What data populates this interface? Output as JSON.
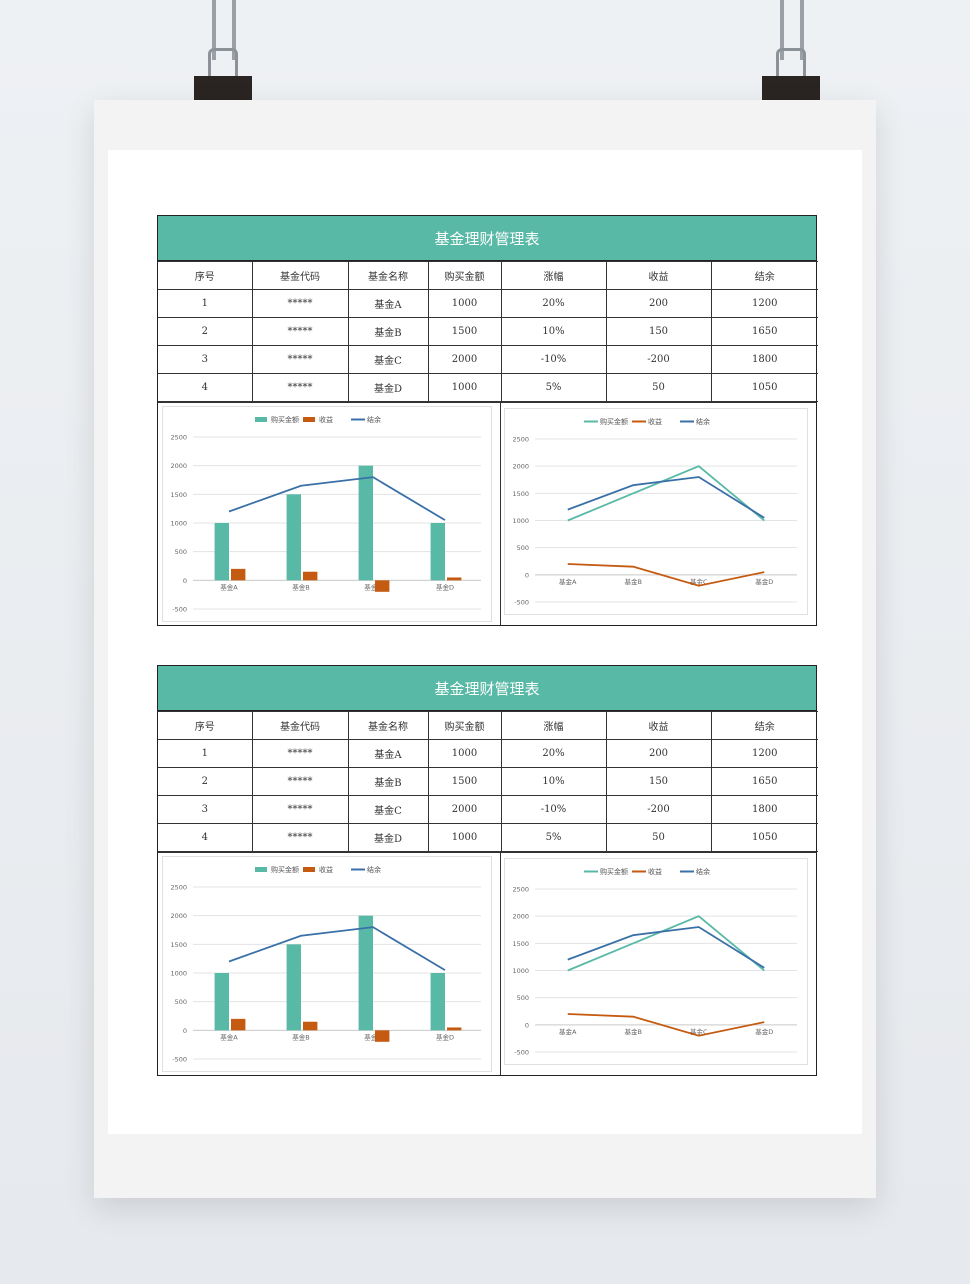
{
  "sheets": [
    {
      "title": "基金理财管理表",
      "headers": [
        "序号",
        "基金代码",
        "基金名称",
        "购买金额",
        "涨幅",
        "收益",
        "结余"
      ],
      "rows": [
        [
          "1",
          "*****",
          "基金A",
          "1000",
          "20%",
          "200",
          "1200"
        ],
        [
          "2",
          "*****",
          "基金B",
          "1500",
          "10%",
          "150",
          "1650"
        ],
        [
          "3",
          "*****",
          "基金C",
          "2000",
          "-10%",
          "-200",
          "1800"
        ],
        [
          "4",
          "*****",
          "基金D",
          "1000",
          "5%",
          "50",
          "1050"
        ]
      ]
    },
    {
      "title": "基金理财管理表",
      "headers": [
        "序号",
        "基金代码",
        "基金名称",
        "购买金额",
        "涨幅",
        "收益",
        "结余"
      ],
      "rows": [
        [
          "1",
          "*****",
          "基金A",
          "1000",
          "20%",
          "200",
          "1200"
        ],
        [
          "2",
          "*****",
          "基金B",
          "1500",
          "10%",
          "150",
          "1650"
        ],
        [
          "3",
          "*****",
          "基金C",
          "2000",
          "-10%",
          "-200",
          "1800"
        ],
        [
          "4",
          "*****",
          "基金D",
          "1000",
          "5%",
          "50",
          "1050"
        ]
      ]
    }
  ],
  "colors": {
    "header_bg": "#58b9a6",
    "purchase": "#58b9a6",
    "profit": "#c55a11",
    "balance": "#3a70a8"
  },
  "chart_data": [
    {
      "type": "bar",
      "categories": [
        "基金A",
        "基金B",
        "基金C",
        "基金D"
      ],
      "series": [
        {
          "name": "购买金额",
          "type": "bar",
          "values": [
            1000,
            1500,
            2000,
            1000
          ],
          "color": "#58b9a6"
        },
        {
          "name": "收益",
          "type": "bar",
          "values": [
            200,
            150,
            -200,
            50
          ],
          "color": "#c55a11"
        },
        {
          "name": "结余",
          "type": "line",
          "values": [
            1200,
            1650,
            1800,
            1050
          ],
          "color": "#3a70a8"
        }
      ],
      "ylim": [
        -500,
        2500
      ],
      "yticks": [
        2500,
        2000,
        1500,
        1000,
        500,
        0,
        -500
      ],
      "legend": "top-center",
      "grid": true
    },
    {
      "type": "line",
      "categories": [
        "基金A",
        "基金B",
        "基金C",
        "基金D"
      ],
      "series": [
        {
          "name": "购买金额",
          "values": [
            1000,
            1500,
            2000,
            1000
          ],
          "color": "#58b9a6"
        },
        {
          "name": "收益",
          "values": [
            200,
            150,
            -200,
            50
          ],
          "color": "#c55a11"
        },
        {
          "name": "结余",
          "values": [
            1200,
            1650,
            1800,
            1050
          ],
          "color": "#3a70a8"
        }
      ],
      "ylim": [
        -500,
        2500
      ],
      "yticks": [
        2500,
        2000,
        1500,
        1000,
        500,
        0,
        -500
      ],
      "legend": "top-center",
      "grid": true
    },
    {
      "type": "bar",
      "categories": [
        "基金A",
        "基金B",
        "基金C",
        "基金D"
      ],
      "series": [
        {
          "name": "购买金额",
          "type": "bar",
          "values": [
            1000,
            1500,
            2000,
            1000
          ],
          "color": "#58b9a6"
        },
        {
          "name": "收益",
          "type": "bar",
          "values": [
            200,
            150,
            -200,
            50
          ],
          "color": "#c55a11"
        },
        {
          "name": "结余",
          "type": "line",
          "values": [
            1200,
            1650,
            1800,
            1050
          ],
          "color": "#3a70a8"
        }
      ],
      "ylim": [
        -500,
        2500
      ],
      "yticks": [
        2500,
        2000,
        1500,
        1000,
        500,
        0,
        -500
      ],
      "legend": "top-center",
      "grid": true
    },
    {
      "type": "line",
      "categories": [
        "基金A",
        "基金B",
        "基金C",
        "基金D"
      ],
      "series": [
        {
          "name": "购买金额",
          "values": [
            1000,
            1500,
            2000,
            1000
          ],
          "color": "#58b9a6"
        },
        {
          "name": "收益",
          "values": [
            200,
            150,
            -200,
            50
          ],
          "color": "#c55a11"
        },
        {
          "name": "结余",
          "values": [
            1200,
            1650,
            1800,
            1050
          ],
          "color": "#3a70a8"
        }
      ],
      "ylim": [
        -500,
        2500
      ],
      "yticks": [
        2500,
        2000,
        1500,
        1000,
        500,
        0,
        -500
      ],
      "legend": "top-center",
      "grid": true
    }
  ]
}
